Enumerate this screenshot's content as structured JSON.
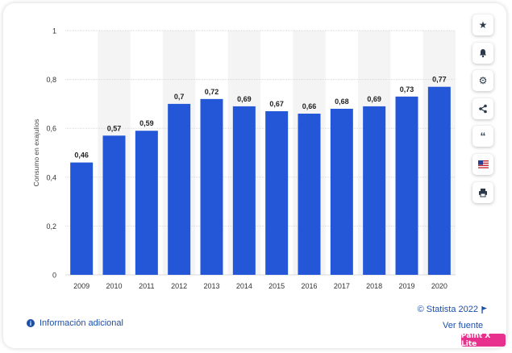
{
  "chart_data": {
    "type": "bar",
    "categories": [
      "2009",
      "2010",
      "2011",
      "2012",
      "2013",
      "2014",
      "2015",
      "2016",
      "2017",
      "2018",
      "2019",
      "2020"
    ],
    "values": [
      0.46,
      0.57,
      0.59,
      0.7,
      0.72,
      0.69,
      0.67,
      0.66,
      0.68,
      0.69,
      0.73,
      0.77
    ],
    "value_labels": [
      "0,46",
      "0,57",
      "0,59",
      "0,7",
      "0,72",
      "0,69",
      "0,67",
      "0,66",
      "0,68",
      "0,69",
      "0,73",
      "0,77"
    ],
    "title": "",
    "xlabel": "",
    "ylabel": "Consumo en exajulios",
    "ylim": [
      0,
      1
    ],
    "yticks": [
      0,
      0.2,
      0.4,
      0.6,
      0.8,
      1
    ],
    "ytick_labels": [
      "0",
      "0,2",
      "0,4",
      "0,6",
      "0,8",
      "1"
    ],
    "grid": true,
    "bar_color": "#2357d8",
    "band_color": "#f4f4f5"
  },
  "footer": {
    "info_label": "Información adicional",
    "copyright": "© Statista 2022",
    "source_label": "Ver fuente"
  },
  "sidebar": {
    "icons": [
      "star-icon",
      "bell-icon",
      "gear-icon",
      "share-icon",
      "quote-icon",
      "flag-icon",
      "print-icon"
    ]
  },
  "badge": {
    "label": "Paint X Lite"
  }
}
